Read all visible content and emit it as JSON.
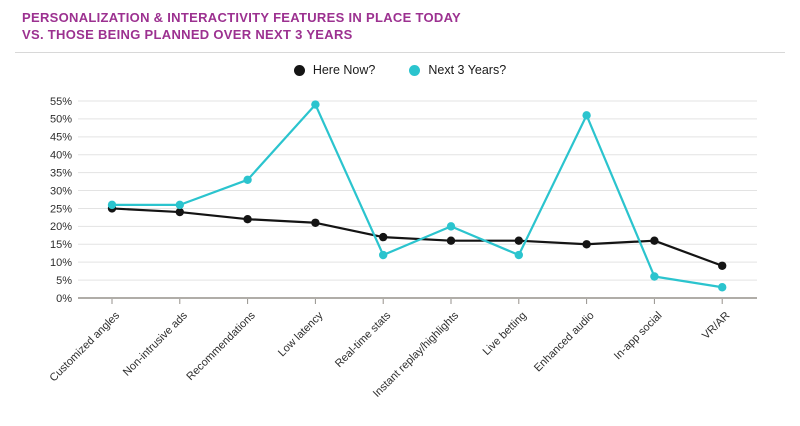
{
  "page": {
    "title_line1": "PERSONALIZATION & INTERACTIVITY FEATURES IN PLACE TODAY",
    "title_line2": "VS. THOSE BEING PLANNED OVER NEXT 3 YEARS"
  },
  "colors": {
    "title": "#9c3190",
    "here_now": "#141414",
    "next_3_years": "#2bc4ce",
    "gridline": "#e3e3e3",
    "axis": "#96928c",
    "tick_label": "#2e2e2e",
    "divider": "#d8d8d8"
  },
  "legend": [
    {
      "label": "Here Now?",
      "color_key": "here_now"
    },
    {
      "label": "Next 3 Years?",
      "color_key": "next_3_years"
    }
  ],
  "chart_data": {
    "type": "line",
    "title": "Personalization & interactivity features in place today vs. those being planned over next 3 years",
    "categories": [
      "Customized angles",
      "Non-intrusive ads",
      "Recommendations",
      "Low latency",
      "Real-time stats",
      "Instant replay/highlights",
      "Live betting",
      "Enhanced audio",
      "In-app social",
      "VR/AR"
    ],
    "series": [
      {
        "name": "Here Now?",
        "color_key": "here_now",
        "values": [
          25,
          24,
          22,
          21,
          17,
          16,
          16,
          15,
          16,
          9
        ]
      },
      {
        "name": "Next 3 Years?",
        "color_key": "next_3_years",
        "values": [
          26,
          26,
          33,
          54,
          12,
          20,
          12,
          51,
          6,
          3
        ]
      }
    ],
    "ylim": [
      0,
      55
    ],
    "ytick_step": 5,
    "yticks": [
      "0%",
      "5%",
      "10%",
      "15%",
      "20%",
      "25%",
      "30%",
      "35%",
      "40%",
      "45%",
      "50%",
      "55%"
    ],
    "ytick_suffix": "%",
    "grid": "horizontal",
    "legend_position": "top-center",
    "xlabel_rotation": -45
  }
}
